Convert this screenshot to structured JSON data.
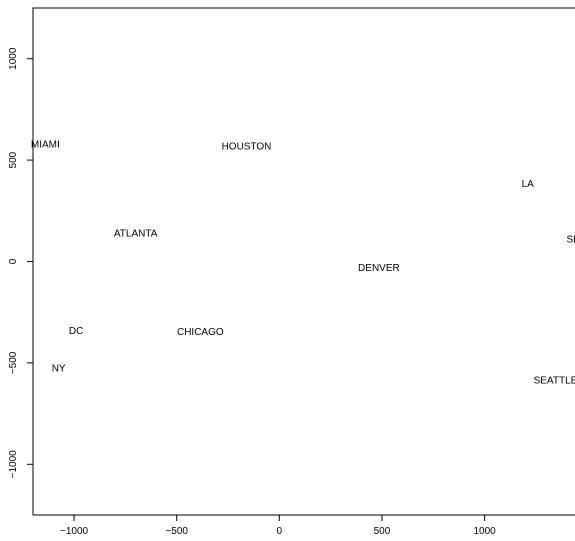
{
  "chart_data": {
    "type": "scatter",
    "title": "",
    "xlabel": "",
    "ylabel": "",
    "xlim": [
      -1200,
      1450
    ],
    "ylim": [
      -1250,
      1250
    ],
    "x_ticks": [
      -1000,
      -500,
      0,
      500,
      1000
    ],
    "y_ticks": [
      -1000,
      -500,
      0,
      500,
      1000
    ],
    "x_tick_labels": [
      "−1000",
      "−500",
      "0",
      "500",
      "1000"
    ],
    "y_tick_labels": [
      "−1000",
      "−500",
      "0",
      "500",
      "1000"
    ],
    "grid": false,
    "points": [
      {
        "label": "MIAMI",
        "x": -1140,
        "y": 580
      },
      {
        "label": "HOUSTON",
        "x": -160,
        "y": 570
      },
      {
        "label": "LA",
        "x": 1210,
        "y": 385
      },
      {
        "label": "SF",
        "x": 1430,
        "y": 110
      },
      {
        "label": "ATLANTA",
        "x": -700,
        "y": 140
      },
      {
        "label": "DENVER",
        "x": 485,
        "y": -30
      },
      {
        "label": "DC",
        "x": -990,
        "y": -340
      },
      {
        "label": "CHICAGO",
        "x": -385,
        "y": -345
      },
      {
        "label": "NY",
        "x": -1075,
        "y": -525
      },
      {
        "label": "SEATTLE",
        "x": 1345,
        "y": -585
      }
    ]
  }
}
